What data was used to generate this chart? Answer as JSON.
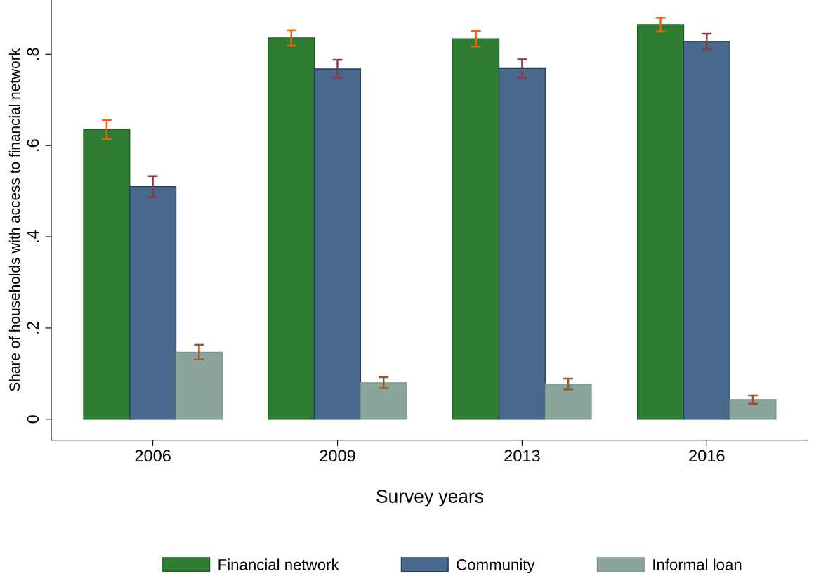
{
  "chart_data": {
    "type": "bar",
    "xlabel": "Survey years",
    "ylabel": "Share of households with access to financial network",
    "categories": [
      "2006",
      "2009",
      "2013",
      "2016"
    ],
    "series": [
      {
        "name": "Financial network",
        "color": "#2f7d32",
        "values": [
          0.635,
          0.836,
          0.834,
          0.865
        ],
        "errors": [
          0.021,
          0.017,
          0.017,
          0.015
        ]
      },
      {
        "name": "Community",
        "color": "#48698c",
        "values": [
          0.51,
          0.768,
          0.769,
          0.828
        ],
        "errors": [
          0.023,
          0.02,
          0.02,
          0.017
        ]
      },
      {
        "name": "Informal loan",
        "color": "#8aa69a",
        "values": [
          0.147,
          0.08,
          0.077,
          0.043
        ],
        "errors": [
          0.016,
          0.012,
          0.012,
          0.009
        ]
      }
    ],
    "ylim": [
      -0.046,
      0.919
    ],
    "yticks": [
      {
        "value": 0,
        "label": "0"
      },
      {
        "value": 0.2,
        "label": ".2"
      },
      {
        "value": 0.4,
        "label": ".4"
      },
      {
        "value": 0.6,
        "label": ".6"
      },
      {
        "value": 0.8,
        "label": ".8"
      }
    ],
    "grid": false,
    "legend": "bottom"
  }
}
